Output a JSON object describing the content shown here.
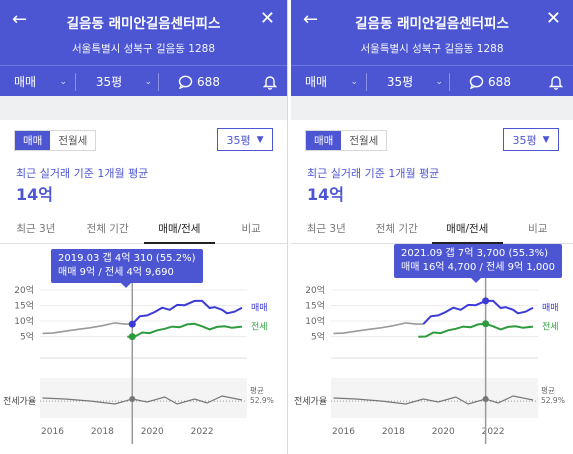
{
  "colors": {
    "brand": "#4c56d3",
    "sale_line": "#3d3ad6",
    "jeonse_line": "#2e9c3e",
    "past_line": "#9a9a9a",
    "cursor": "#9a9a9a"
  },
  "header": {
    "title": "길음동 래미안길음센터피스",
    "address": "서울특별시 성북구 길음동 1288",
    "deal_filter": "매매",
    "area_filter": "35평",
    "comment_count": "688",
    "icons": {
      "back": "arrow-left-icon",
      "close": "close-icon",
      "comment": "chat-bubble-icon",
      "alert": "bell-icon",
      "dropdown": "chevron-down-icon"
    }
  },
  "price_section": {
    "toggle": [
      "매매",
      "전월세"
    ],
    "area_select": "35평",
    "avg_label": "최근 실거래 기준 1개월 평균",
    "avg_price": "14억"
  },
  "tabs": [
    "최근 3년",
    "전체 기간",
    "매매/전세",
    "비교"
  ],
  "panels": [
    {
      "tooltip_line1": "2019.03  갭 4억 310 (55.2%)",
      "tooltip_line2": "매매 9억 / 전세 4억 9,690",
      "cursor_year": 2019.2
    },
    {
      "tooltip_line1": "2021.09  갭 7억 3,700 (55.3%)",
      "tooltip_line2": "매매 16억 4,700 / 전세 9억 1,000",
      "cursor_year": 2021.7
    }
  ],
  "chart_data": {
    "type": "line",
    "xlabel": "",
    "ylabel": "",
    "x_ticks": [
      "2016",
      "2018",
      "2020",
      "2022"
    ],
    "y_ticks": [
      "20억",
      "15억",
      "10억",
      "5억"
    ],
    "xlim": [
      2015.5,
      2023.8
    ],
    "ylim": [
      0,
      20
    ],
    "legend": {
      "sale": "매매",
      "jeonse": "전세",
      "ratio": "전세가율",
      "ratio_avg_label": "평균",
      "ratio_avg_value": "52.9%"
    },
    "series": [
      {
        "name": "매매",
        "color": "#3d3ad6",
        "x": [
          2015.6,
          2016.0,
          2016.5,
          2017.0,
          2017.5,
          2018.0,
          2018.5,
          2018.9,
          2019.2,
          2019.5,
          2019.8,
          2020.1,
          2020.4,
          2020.7,
          2021.0,
          2021.3,
          2021.7,
          2022.0,
          2022.3,
          2022.5,
          2022.8,
          2023.0,
          2023.3,
          2023.6
        ],
        "y": [
          6.0,
          6.1,
          6.7,
          7.3,
          7.8,
          8.5,
          9.4,
          9.0,
          9.0,
          11.5,
          11.8,
          12.9,
          14.3,
          13.6,
          15.2,
          15.1,
          16.5,
          16.5,
          14.2,
          14.5,
          13.6,
          12.5,
          13.0,
          14.3
        ]
      },
      {
        "name": "전세",
        "color": "#2e9c3e",
        "x": [
          2019.0,
          2019.3,
          2019.6,
          2019.9,
          2020.2,
          2020.5,
          2020.8,
          2021.1,
          2021.4,
          2021.7,
          2022.0,
          2022.3,
          2022.6,
          2022.9,
          2023.2,
          2023.6
        ],
        "y": [
          4.9,
          5.0,
          6.3,
          6.1,
          7.0,
          7.5,
          8.2,
          8.0,
          8.9,
          9.1,
          8.3,
          7.3,
          8.1,
          8.3,
          7.8,
          8.2
        ]
      },
      {
        "name": "전세가율",
        "color": "#888888",
        "x": [
          2015.6,
          2016.5,
          2017.5,
          2018.5,
          2019.2,
          2019.8,
          2020.5,
          2021.0,
          2021.7,
          2022.2,
          2022.8,
          2023.6
        ],
        "y": [
          56,
          55,
          53,
          50,
          55,
          52,
          57,
          50,
          55,
          51,
          58,
          54
        ]
      }
    ]
  }
}
